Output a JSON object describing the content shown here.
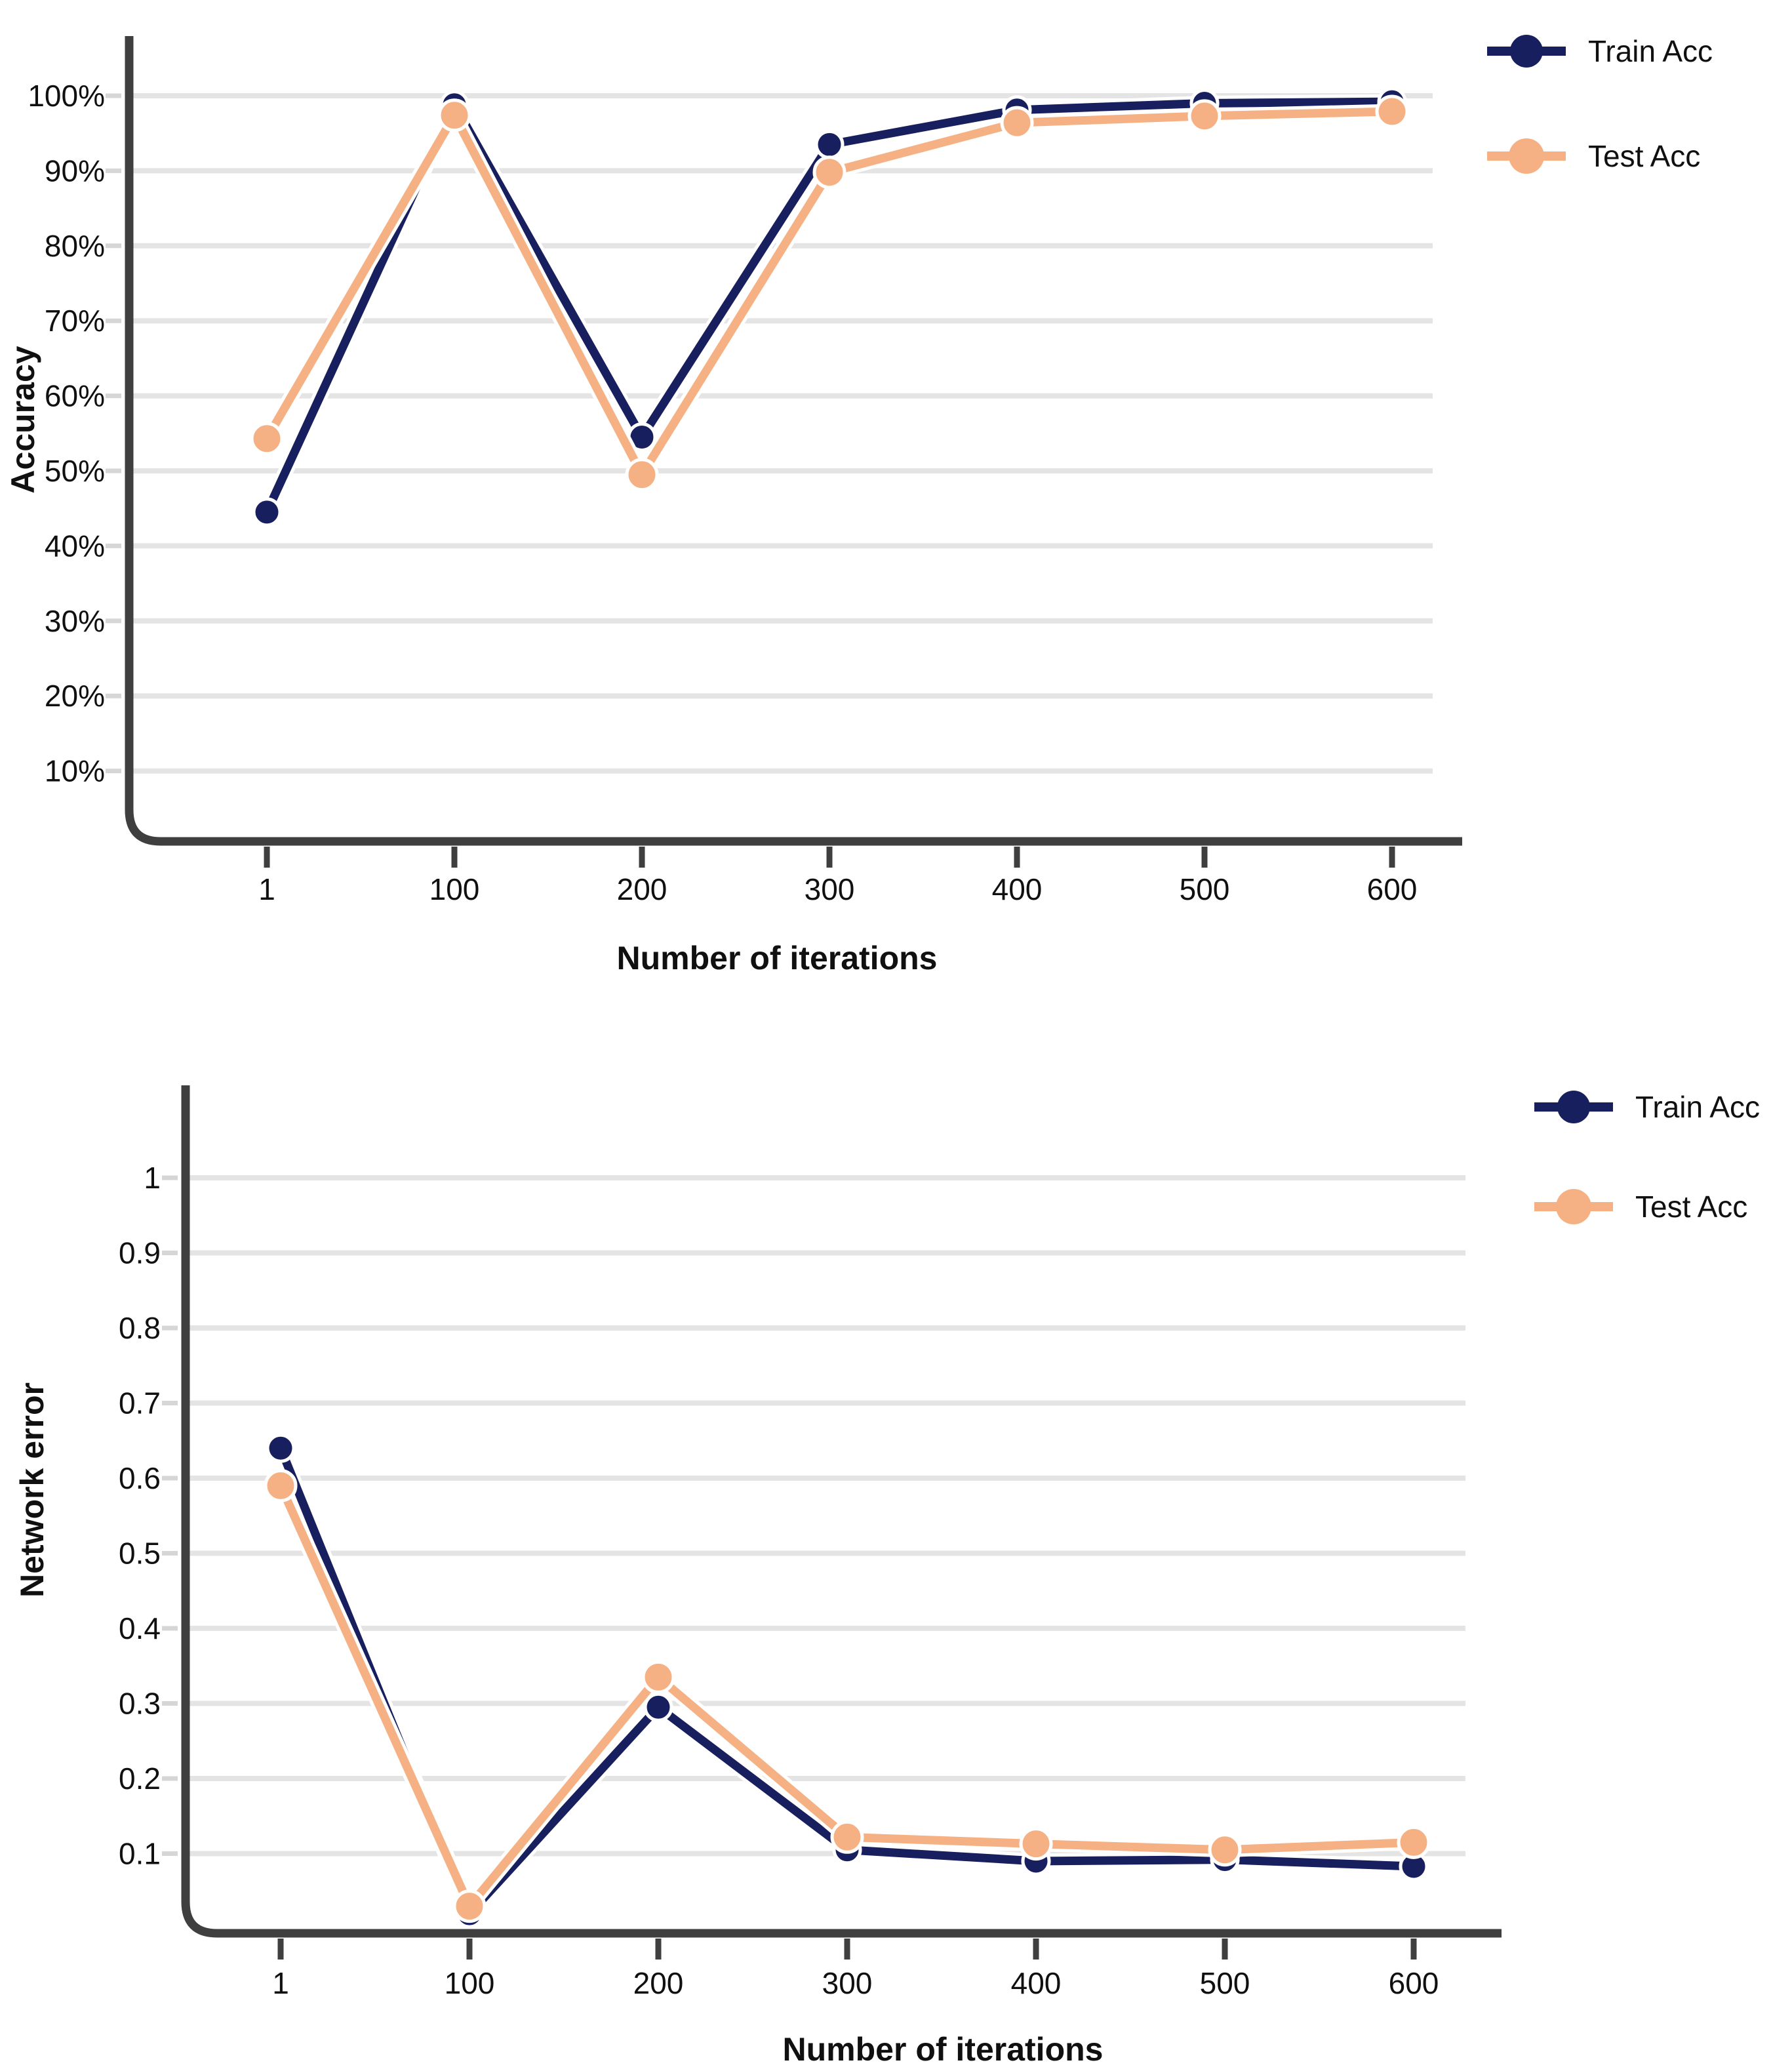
{
  "page": {
    "background": "#ffffff"
  },
  "colors": {
    "axis": "#3f3f3f",
    "grid": "#e4e4e4",
    "tick_dash": "#d6d6d6",
    "text": "#101010",
    "train": "#171f5e",
    "test": "#f5b183"
  },
  "chart_data": [
    {
      "type": "line",
      "title": "",
      "xlabel": "Number of iterations",
      "ylabel": "Accuracy",
      "x": [
        1,
        100,
        200,
        300,
        400,
        500,
        600
      ],
      "x_tick_labels": [
        "1",
        "100",
        "200",
        "300",
        "400",
        "500",
        "600"
      ],
      "y_tick_values": [
        10,
        20,
        30,
        40,
        50,
        60,
        70,
        80,
        90,
        100
      ],
      "y_tick_labels": [
        "10%",
        "20%",
        "30%",
        "40%",
        "50%",
        "60%",
        "70%",
        "80%",
        "90%",
        "100%"
      ],
      "ylim": [
        0,
        108
      ],
      "grid": true,
      "legend_position": "top-right",
      "series": [
        {
          "name": "Train Acc",
          "color": "#171f5e",
          "values": [
            44.5,
            98.8,
            54.5,
            93.5,
            98.1,
            99.0,
            99.2
          ]
        },
        {
          "name": "Test Acc",
          "color": "#f5b183",
          "values": [
            54.3,
            97.4,
            49.5,
            89.8,
            96.4,
            97.3,
            97.9
          ]
        }
      ]
    },
    {
      "type": "line",
      "title": "",
      "xlabel": "Number of iterations",
      "ylabel": "Network error",
      "x": [
        1,
        100,
        200,
        300,
        400,
        500,
        600
      ],
      "x_tick_labels": [
        "1",
        "100",
        "200",
        "300",
        "400",
        "500",
        "600"
      ],
      "y_tick_values": [
        0.1,
        0.2,
        0.3,
        0.4,
        0.5,
        0.6,
        0.7,
        0.8,
        0.9,
        1
      ],
      "y_tick_labels": [
        "0.1",
        "0.2",
        "0.3",
        "0.4",
        "0.5",
        "0.6",
        "0.7",
        "0.8",
        "0.9",
        "1"
      ],
      "ylim": [
        0,
        1.12
      ],
      "grid": true,
      "legend_position": "top-right",
      "series": [
        {
          "name": "Train Acc",
          "color": "#171f5e",
          "values": [
            0.64,
            0.02,
            0.295,
            0.105,
            0.09,
            0.092,
            0.083
          ]
        },
        {
          "name": "Test Acc",
          "color": "#f5b183",
          "values": [
            0.59,
            0.03,
            0.335,
            0.122,
            0.113,
            0.105,
            0.115
          ]
        }
      ]
    }
  ]
}
